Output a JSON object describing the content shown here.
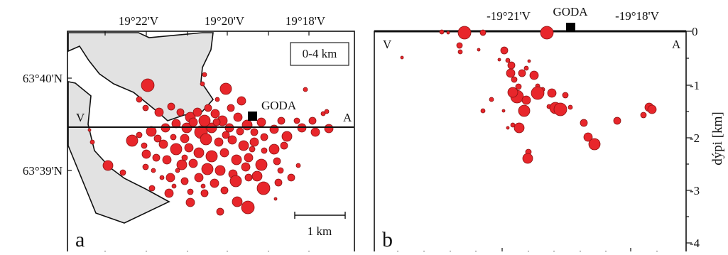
{
  "panel_a": {
    "letter": "a",
    "lon_ticks": [
      "19°22'V",
      "19°20'V",
      "19°18'V"
    ],
    "lat_ticks": [
      "63°40'N",
      "63°39'N"
    ],
    "depth_range_label": "0-4 km",
    "station_label": "GODA",
    "profile_start_label": "V",
    "profile_end_label": "A",
    "scale_bar_label": "1 km"
  },
  "panel_b": {
    "letter": "b",
    "top_ticks": [
      "-19°21'V",
      "GODA",
      "-19°18'V"
    ],
    "depth_ticks": [
      "0",
      "-1",
      "-2",
      "-3",
      "-4"
    ],
    "depth_axis_label": "dýpi [km]",
    "profile_start_label": "V",
    "profile_end_label": "A"
  },
  "colors": {
    "quake_fill": "#e8262b",
    "quake_stroke": "#8a1212",
    "land_fill": "#e2e2e2",
    "station": "#000000"
  }
}
